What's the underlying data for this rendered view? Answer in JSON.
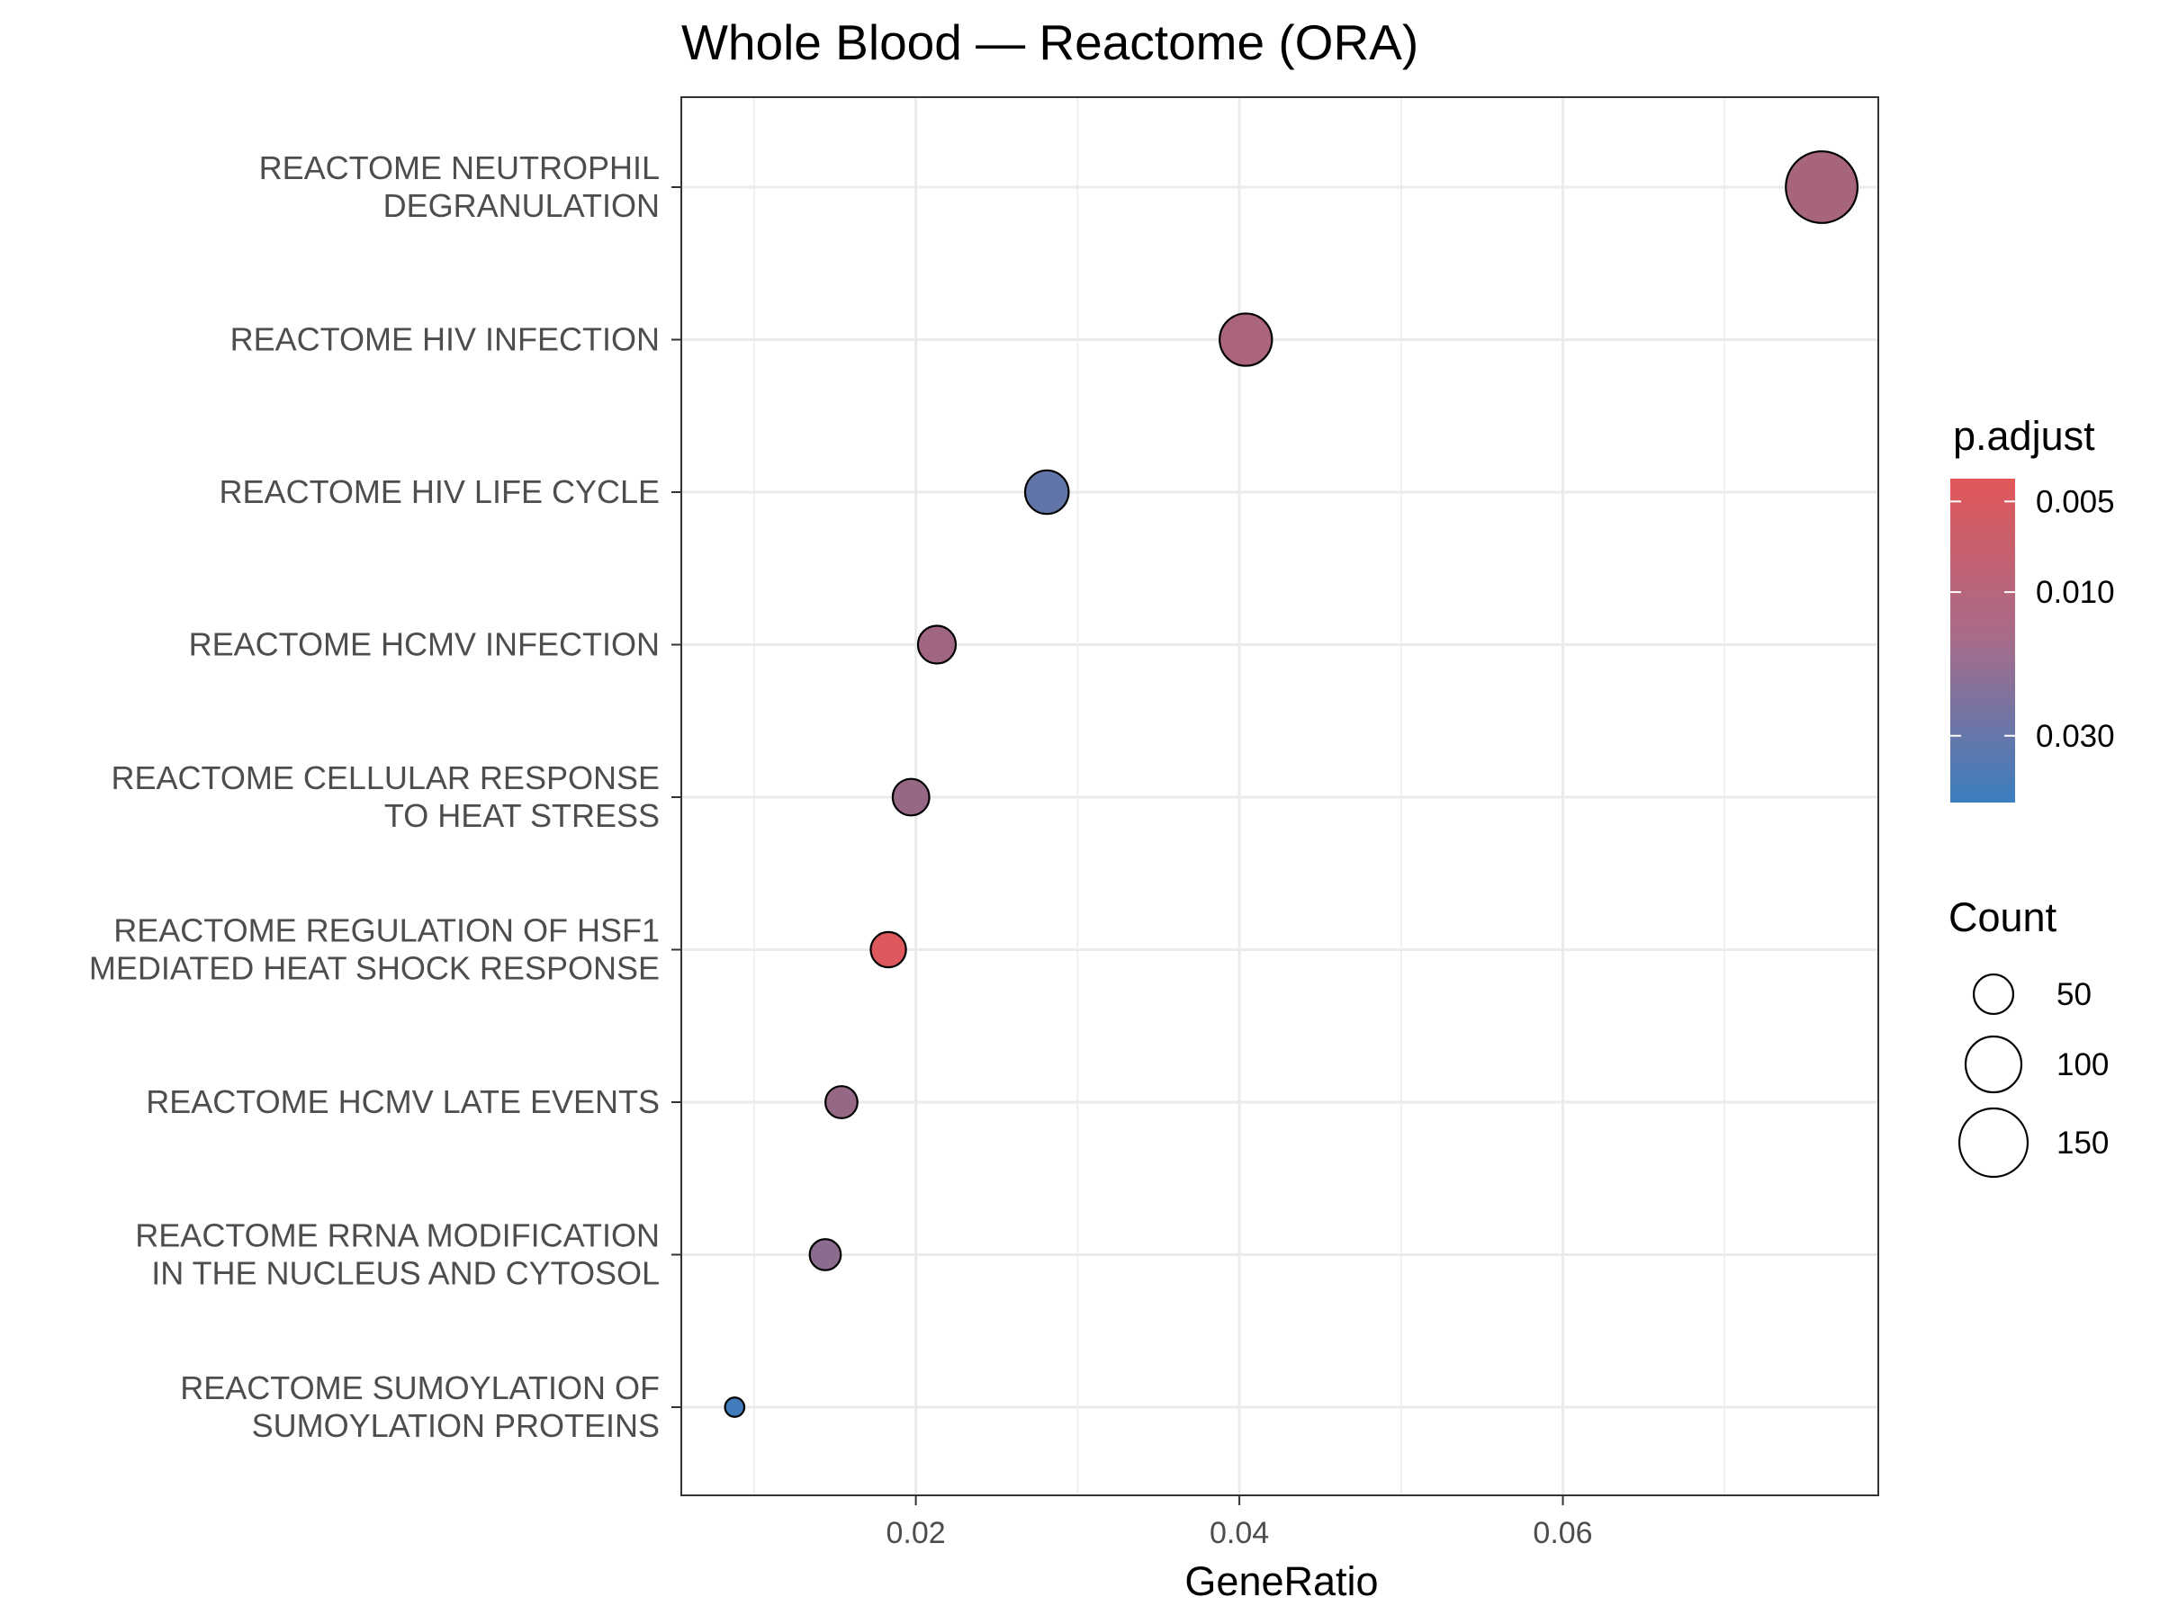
{
  "chart_data": {
    "type": "scatter",
    "title": "Whole Blood — Reactome (ORA)",
    "xlabel": "GeneRatio",
    "ylabel": "",
    "xlim": [
      0.0055,
      0.0795
    ],
    "x_ticks": [
      0.02,
      0.04,
      0.06
    ],
    "x_tick_labels": [
      "0.02",
      "0.04",
      "0.06"
    ],
    "grid": true,
    "legend_position": "right",
    "categories": [
      [
        "REACTOME NEUTROPHIL",
        "DEGRANULATION"
      ],
      [
        "REACTOME HIV INFECTION"
      ],
      [
        "REACTOME HIV LIFE CYCLE"
      ],
      [
        "REACTOME HCMV INFECTION"
      ],
      [
        "REACTOME CELLULAR RESPONSE",
        "TO HEAT STRESS"
      ],
      [
        "REACTOME REGULATION OF HSF1",
        "MEDIATED HEAT SHOCK RESPONSE"
      ],
      [
        "REACTOME HCMV LATE EVENTS"
      ],
      [
        "REACTOME RRNA MODIFICATION",
        "IN THE NUCLEUS AND CYTOSOL"
      ],
      [
        "REACTOME SUMOYLATION OF",
        "SUMOYLATION PROTEINS"
      ]
    ],
    "points": [
      {
        "gene_ratio": 0.076,
        "count": 165,
        "p_adjust": 0.01
      },
      {
        "gene_ratio": 0.0404,
        "count": 88,
        "p_adjust": 0.0095
      },
      {
        "gene_ratio": 0.0281,
        "count": 61,
        "p_adjust": 0.028
      },
      {
        "gene_ratio": 0.0213,
        "count": 46,
        "p_adjust": 0.011
      },
      {
        "gene_ratio": 0.0197,
        "count": 43,
        "p_adjust": 0.0125
      },
      {
        "gene_ratio": 0.0183,
        "count": 40,
        "p_adjust": 0.0045
      },
      {
        "gene_ratio": 0.0154,
        "count": 33,
        "p_adjust": 0.0125
      },
      {
        "gene_ratio": 0.0144,
        "count": 31,
        "p_adjust": 0.015
      },
      {
        "gene_ratio": 0.0088,
        "count": 12,
        "p_adjust": 0.045
      }
    ],
    "color_legend": {
      "title": "p.adjust",
      "scale": "log",
      "range": [
        0.0042,
        0.05
      ],
      "breaks": [
        0.005,
        0.01,
        0.03
      ],
      "labels": [
        "0.005",
        "0.010",
        "0.030"
      ],
      "low_color": "#E15759",
      "high_color": "#3A7EC0"
    },
    "size_legend": {
      "title": "Count",
      "breaks": [
        50,
        100,
        150
      ],
      "labels": [
        "50",
        "100",
        "150"
      ]
    }
  }
}
